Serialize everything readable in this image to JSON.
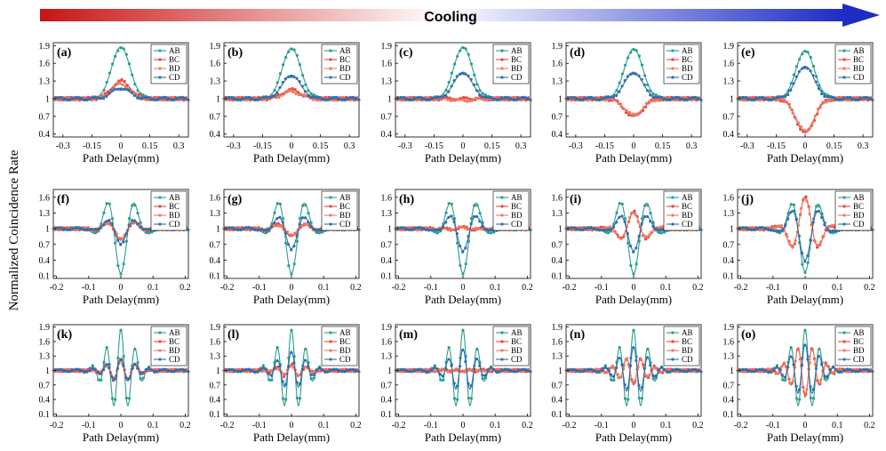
{
  "figure": {
    "banner_label": "Cooling",
    "y_axis_label": "Normalized Coincidence Rate",
    "banner_gradient": [
      "#c81414",
      "#ffffff",
      "#1c2cc4"
    ]
  },
  "series_style": [
    {
      "name": "AB",
      "color": "#2a9d8f"
    },
    {
      "name": "BC",
      "color": "#e8463c"
    },
    {
      "name": "BD",
      "color": "#f07860"
    },
    {
      "name": "CD",
      "color": "#2f6fae"
    }
  ],
  "chart_data": [
    {
      "id": "a",
      "panel_label": "(a)",
      "type": "line",
      "xlabel": "Path Delay(mm)",
      "xticks": [
        "-0.3",
        "-0.15",
        "0",
        "0.15",
        "0.3"
      ],
      "xlim": [
        -0.35,
        0.35
      ],
      "yticks": [
        "0.4",
        "0.7",
        "1",
        "1.3",
        "1.6",
        "1.9"
      ],
      "ylim": [
        0.35,
        1.95
      ],
      "legend": [
        "AB",
        "BC",
        "BD",
        "CD"
      ],
      "series": [
        {
          "name": "AB",
          "form": "gaussian",
          "amplitude": 0.88,
          "width_mm": 0.07
        },
        {
          "name": "BC",
          "form": "gaussian",
          "amplitude": 0.3,
          "width_mm": 0.07
        },
        {
          "name": "BD",
          "form": "gaussian",
          "amplitude": 0.25,
          "width_mm": 0.07
        },
        {
          "name": "CD",
          "form": "gaussian",
          "amplitude": 0.18,
          "width_mm": 0.07
        }
      ]
    },
    {
      "id": "b",
      "panel_label": "(b)",
      "type": "line",
      "xlabel": "Path Delay(mm)",
      "xticks": [
        "-0.3",
        "-0.15",
        "0",
        "0.15",
        "0.3"
      ],
      "xlim": [
        -0.35,
        0.35
      ],
      "yticks": [
        "0.4",
        "0.7",
        "1",
        "1.3",
        "1.6",
        "1.9"
      ],
      "ylim": [
        0.35,
        1.95
      ],
      "legend": [
        "AB",
        "BC",
        "BD",
        "CD"
      ],
      "series": [
        {
          "name": "AB",
          "form": "gaussian",
          "amplitude": 0.86,
          "width_mm": 0.07
        },
        {
          "name": "BC",
          "form": "gaussian",
          "amplitude": 0.15,
          "width_mm": 0.07
        },
        {
          "name": "BD",
          "form": "gaussian",
          "amplitude": 0.12,
          "width_mm": 0.07
        },
        {
          "name": "CD",
          "form": "gaussian",
          "amplitude": 0.4,
          "width_mm": 0.07
        }
      ]
    },
    {
      "id": "c",
      "panel_label": "(c)",
      "type": "line",
      "xlabel": "Path Delay(mm)",
      "xticks": [
        "-0.3",
        "-0.15",
        "0",
        "0.15",
        "0.3"
      ],
      "xlim": [
        -0.35,
        0.35
      ],
      "yticks": [
        "0.4",
        "0.7",
        "1",
        "1.3",
        "1.6",
        "1.9"
      ],
      "ylim": [
        0.35,
        1.95
      ],
      "legend": [
        "AB",
        "BC",
        "BD",
        "CD"
      ],
      "series": [
        {
          "name": "AB",
          "form": "gaussian",
          "amplitude": 0.88,
          "width_mm": 0.07
        },
        {
          "name": "BC",
          "form": "gaussian",
          "amplitude": 0.0,
          "width_mm": 0.07
        },
        {
          "name": "BD",
          "form": "gaussian",
          "amplitude": -0.03,
          "width_mm": 0.07
        },
        {
          "name": "CD",
          "form": "gaussian",
          "amplitude": 0.45,
          "width_mm": 0.07
        }
      ]
    },
    {
      "id": "d",
      "panel_label": "(d)",
      "type": "line",
      "xlabel": "Path Delay(mm)",
      "xticks": [
        "-0.3",
        "-0.15",
        "0",
        "0.15",
        "0.3"
      ],
      "xlim": [
        -0.35,
        0.35
      ],
      "yticks": [
        "0.4",
        "0.7",
        "1",
        "1.3",
        "1.6",
        "1.9"
      ],
      "ylim": [
        0.35,
        1.95
      ],
      "legend": [
        "AB",
        "BC",
        "BD",
        "CD"
      ],
      "series": [
        {
          "name": "AB",
          "form": "gaussian",
          "amplitude": 0.85,
          "width_mm": 0.07
        },
        {
          "name": "BC",
          "form": "gaussian",
          "amplitude": -0.3,
          "width_mm": 0.07
        },
        {
          "name": "BD",
          "form": "gaussian",
          "amplitude": -0.28,
          "width_mm": 0.07
        },
        {
          "name": "CD",
          "form": "gaussian",
          "amplitude": 0.45,
          "width_mm": 0.07
        }
      ]
    },
    {
      "id": "e",
      "panel_label": "(e)",
      "type": "line",
      "xlabel": "Path Delay(mm)",
      "xticks": [
        "-0.3",
        "-0.15",
        "0",
        "0.15",
        "0.3"
      ],
      "xlim": [
        -0.35,
        0.35
      ],
      "yticks": [
        "0.4",
        "0.7",
        "1",
        "1.3",
        "1.6",
        "1.9"
      ],
      "ylim": [
        0.35,
        1.95
      ],
      "legend": [
        "AB",
        "BC",
        "BD",
        "CD"
      ],
      "series": [
        {
          "name": "AB",
          "form": "gaussian",
          "amplitude": 0.82,
          "width_mm": 0.07
        },
        {
          "name": "BC",
          "form": "gaussian",
          "amplitude": -0.58,
          "width_mm": 0.07
        },
        {
          "name": "BD",
          "form": "gaussian",
          "amplitude": -0.55,
          "width_mm": 0.07
        },
        {
          "name": "CD",
          "form": "gaussian",
          "amplitude": 0.55,
          "width_mm": 0.07
        }
      ]
    },
    {
      "id": "f",
      "panel_label": "(f)",
      "type": "line",
      "xlabel": "Path Delay(mm)",
      "xticks": [
        "-0.2",
        "-0.1",
        "0",
        "0.1",
        "0.2"
      ],
      "xlim": [
        -0.21,
        0.21
      ],
      "yticks": [
        "0.1",
        "0.4",
        "0.7",
        "1",
        "1.3",
        "1.6"
      ],
      "ylim": [
        0.05,
        1.75
      ],
      "legend": [
        "AB",
        "BC",
        "BD",
        "CD"
      ],
      "series": [
        {
          "name": "AB",
          "form": "gauss_cos",
          "amplitude": -0.85,
          "period_mm": 0.09,
          "width_mm": 0.06
        },
        {
          "name": "BC",
          "form": "gauss_cos",
          "amplitude": -0.22,
          "period_mm": 0.09,
          "width_mm": 0.06
        },
        {
          "name": "BD",
          "form": "gauss_cos",
          "amplitude": -0.2,
          "period_mm": 0.09,
          "width_mm": 0.06
        },
        {
          "name": "CD",
          "form": "gauss_cos",
          "amplitude": -0.28,
          "period_mm": 0.09,
          "width_mm": 0.06
        }
      ]
    },
    {
      "id": "g",
      "panel_label": "(g)",
      "type": "line",
      "xlabel": "Path Delay(mm)",
      "xticks": [
        "-0.2",
        "-0.1",
        "0",
        "0.1",
        "0.2"
      ],
      "xlim": [
        -0.21,
        0.21
      ],
      "yticks": [
        "0.1",
        "0.4",
        "0.7",
        "1",
        "1.3",
        "1.6"
      ],
      "ylim": [
        0.05,
        1.75
      ],
      "legend": [
        "AB",
        "BC",
        "BD",
        "CD"
      ],
      "series": [
        {
          "name": "AB",
          "form": "gauss_cos",
          "amplitude": -0.85,
          "period_mm": 0.09,
          "width_mm": 0.06
        },
        {
          "name": "BC",
          "form": "gauss_cos",
          "amplitude": -0.15,
          "period_mm": 0.09,
          "width_mm": 0.06
        },
        {
          "name": "BD",
          "form": "gauss_cos",
          "amplitude": -0.13,
          "period_mm": 0.09,
          "width_mm": 0.06
        },
        {
          "name": "CD",
          "form": "gauss_cos",
          "amplitude": -0.38,
          "period_mm": 0.09,
          "width_mm": 0.06
        }
      ]
    },
    {
      "id": "h",
      "panel_label": "(h)",
      "type": "line",
      "xlabel": "Path Delay(mm)",
      "xticks": [
        "-0.2",
        "-0.1",
        "0",
        "0.1",
        "0.2"
      ],
      "xlim": [
        -0.21,
        0.21
      ],
      "yticks": [
        "0.1",
        "0.4",
        "0.7",
        "1",
        "1.3",
        "1.6"
      ],
      "ylim": [
        0.05,
        1.75
      ],
      "legend": [
        "AB",
        "BC",
        "BD",
        "CD"
      ],
      "series": [
        {
          "name": "AB",
          "form": "gauss_cos",
          "amplitude": -0.85,
          "period_mm": 0.09,
          "width_mm": 0.06
        },
        {
          "name": "BC",
          "form": "gauss_cos",
          "amplitude": 0.02,
          "period_mm": 0.09,
          "width_mm": 0.06
        },
        {
          "name": "BD",
          "form": "gauss_cos",
          "amplitude": 0.02,
          "period_mm": 0.09,
          "width_mm": 0.06
        },
        {
          "name": "CD",
          "form": "gauss_cos",
          "amplitude": -0.42,
          "period_mm": 0.09,
          "width_mm": 0.06
        }
      ]
    },
    {
      "id": "i",
      "panel_label": "(i)",
      "type": "line",
      "xlabel": "Path Delay(mm)",
      "xticks": [
        "-0.2",
        "-0.1",
        "0",
        "0.1",
        "0.2"
      ],
      "xlim": [
        -0.21,
        0.21
      ],
      "yticks": [
        "0.1",
        "0.4",
        "0.7",
        "1",
        "1.3",
        "1.6"
      ],
      "ylim": [
        0.05,
        1.75
      ],
      "legend": [
        "AB",
        "BC",
        "BD",
        "CD"
      ],
      "series": [
        {
          "name": "AB",
          "form": "gauss_cos",
          "amplitude": -0.85,
          "period_mm": 0.09,
          "width_mm": 0.06
        },
        {
          "name": "BC",
          "form": "gauss_cos",
          "amplitude": 0.32,
          "period_mm": 0.09,
          "width_mm": 0.06
        },
        {
          "name": "BD",
          "form": "gauss_cos",
          "amplitude": 0.3,
          "period_mm": 0.09,
          "width_mm": 0.06
        },
        {
          "name": "CD",
          "form": "gauss_cos",
          "amplitude": -0.42,
          "period_mm": 0.09,
          "width_mm": 0.06
        }
      ]
    },
    {
      "id": "j",
      "panel_label": "(j)",
      "type": "line",
      "xlabel": "Path Delay(mm)",
      "xticks": [
        "-0.2",
        "-0.1",
        "0",
        "0.1",
        "0.2"
      ],
      "xlim": [
        -0.21,
        0.21
      ],
      "yticks": [
        "0.1",
        "0.4",
        "0.7",
        "1",
        "1.3",
        "1.6"
      ],
      "ylim": [
        0.05,
        1.75
      ],
      "legend": [
        "AB",
        "BC",
        "BD",
        "CD"
      ],
      "series": [
        {
          "name": "AB",
          "form": "gauss_cos",
          "amplitude": -0.82,
          "period_mm": 0.09,
          "width_mm": 0.06
        },
        {
          "name": "BC",
          "form": "gauss_cos",
          "amplitude": 0.6,
          "period_mm": 0.09,
          "width_mm": 0.06
        },
        {
          "name": "BD",
          "form": "gauss_cos",
          "amplitude": 0.58,
          "period_mm": 0.09,
          "width_mm": 0.06
        },
        {
          "name": "CD",
          "form": "gauss_cos",
          "amplitude": -0.6,
          "period_mm": 0.09,
          "width_mm": 0.06
        }
      ]
    },
    {
      "id": "k",
      "panel_label": "(k)",
      "type": "line",
      "xlabel": "Path Delay(mm)",
      "xticks": [
        "-0.2",
        "-0.1",
        "0",
        "0.1",
        "0.2"
      ],
      "xlim": [
        -0.21,
        0.21
      ],
      "yticks": [
        "0.1",
        "0.4",
        "0.7",
        "1",
        "1.3",
        "1.6",
        "1.9"
      ],
      "ylim": [
        0.05,
        1.95
      ],
      "legend": [
        "AB",
        "BC",
        "BD",
        "CD"
      ],
      "series": [
        {
          "name": "AB",
          "form": "gauss_cos",
          "amplitude": 0.85,
          "period_mm": 0.045,
          "width_mm": 0.06
        },
        {
          "name": "BC",
          "form": "gauss_cos",
          "amplitude": 0.22,
          "period_mm": 0.045,
          "width_mm": 0.06
        },
        {
          "name": "BD",
          "form": "gauss_cos",
          "amplitude": 0.2,
          "period_mm": 0.045,
          "width_mm": 0.06
        },
        {
          "name": "CD",
          "form": "gauss_cos",
          "amplitude": 0.25,
          "period_mm": 0.045,
          "width_mm": 0.06
        }
      ]
    },
    {
      "id": "l",
      "panel_label": "(l)",
      "type": "line",
      "xlabel": "Path Delay(mm)",
      "xticks": [
        "-0.2",
        "-0.1",
        "0",
        "0.1",
        "0.2"
      ],
      "xlim": [
        -0.21,
        0.21
      ],
      "yticks": [
        "0.1",
        "0.4",
        "0.7",
        "1",
        "1.3",
        "1.6",
        "1.9"
      ],
      "ylim": [
        0.05,
        1.95
      ],
      "legend": [
        "AB",
        "BC",
        "BD",
        "CD"
      ],
      "series": [
        {
          "name": "AB",
          "form": "gauss_cos",
          "amplitude": 0.85,
          "period_mm": 0.045,
          "width_mm": 0.06
        },
        {
          "name": "BC",
          "form": "gauss_cos",
          "amplitude": 0.12,
          "period_mm": 0.045,
          "width_mm": 0.06
        },
        {
          "name": "BD",
          "form": "gauss_cos",
          "amplitude": 0.1,
          "period_mm": 0.045,
          "width_mm": 0.06
        },
        {
          "name": "CD",
          "form": "gauss_cos",
          "amplitude": 0.4,
          "period_mm": 0.045,
          "width_mm": 0.06
        }
      ]
    },
    {
      "id": "m",
      "panel_label": "(m)",
      "type": "line",
      "xlabel": "Path Delay(mm)",
      "xticks": [
        "-0.2",
        "-0.1",
        "0",
        "0.1",
        "0.2"
      ],
      "xlim": [
        -0.21,
        0.21
      ],
      "yticks": [
        "0.1",
        "0.4",
        "0.7",
        "1",
        "1.3",
        "1.6",
        "1.9"
      ],
      "ylim": [
        0.05,
        1.95
      ],
      "legend": [
        "AB",
        "BC",
        "BD",
        "CD"
      ],
      "series": [
        {
          "name": "AB",
          "form": "gauss_cos",
          "amplitude": 0.85,
          "period_mm": 0.045,
          "width_mm": 0.06
        },
        {
          "name": "BC",
          "form": "gauss_cos",
          "amplitude": -0.04,
          "period_mm": 0.045,
          "width_mm": 0.06
        },
        {
          "name": "BD",
          "form": "gauss_cos",
          "amplitude": -0.03,
          "period_mm": 0.045,
          "width_mm": 0.06
        },
        {
          "name": "CD",
          "form": "gauss_cos",
          "amplitude": 0.45,
          "period_mm": 0.045,
          "width_mm": 0.06
        }
      ]
    },
    {
      "id": "n",
      "panel_label": "(n)",
      "type": "line",
      "xlabel": "Path Delay(mm)",
      "xticks": [
        "-0.2",
        "-0.1",
        "0",
        "0.1",
        "0.2"
      ],
      "xlim": [
        -0.21,
        0.21
      ],
      "yticks": [
        "0.1",
        "0.4",
        "0.7",
        "1",
        "1.3",
        "1.6",
        "1.9"
      ],
      "ylim": [
        0.05,
        1.95
      ],
      "legend": [
        "AB",
        "BC",
        "BD",
        "CD"
      ],
      "series": [
        {
          "name": "AB",
          "form": "gauss_cos",
          "amplitude": 0.85,
          "period_mm": 0.045,
          "width_mm": 0.06
        },
        {
          "name": "BC",
          "form": "gauss_cos",
          "amplitude": -0.3,
          "period_mm": 0.045,
          "width_mm": 0.06
        },
        {
          "name": "BD",
          "form": "gauss_cos",
          "amplitude": -0.28,
          "period_mm": 0.045,
          "width_mm": 0.06
        },
        {
          "name": "CD",
          "form": "gauss_cos",
          "amplitude": 0.5,
          "period_mm": 0.045,
          "width_mm": 0.06
        }
      ]
    },
    {
      "id": "o",
      "panel_label": "(o)",
      "type": "line",
      "xlabel": "Path Delay(mm)",
      "xticks": [
        "-0.2",
        "-0.1",
        "0",
        "0.1",
        "0.2"
      ],
      "xlim": [
        -0.21,
        0.21
      ],
      "yticks": [
        "0.1",
        "0.4",
        "0.7",
        "1",
        "1.3",
        "1.6",
        "1.9"
      ],
      "ylim": [
        0.05,
        1.95
      ],
      "legend": [
        "AB",
        "BC",
        "BD",
        "CD"
      ],
      "series": [
        {
          "name": "AB",
          "form": "gauss_cos",
          "amplitude": 0.85,
          "period_mm": 0.045,
          "width_mm": 0.06
        },
        {
          "name": "BC",
          "form": "gauss_cos",
          "amplitude": -0.55,
          "period_mm": 0.045,
          "width_mm": 0.06
        },
        {
          "name": "BD",
          "form": "gauss_cos",
          "amplitude": -0.52,
          "period_mm": 0.045,
          "width_mm": 0.06
        },
        {
          "name": "CD",
          "form": "gauss_cos",
          "amplitude": 0.55,
          "period_mm": 0.045,
          "width_mm": 0.06
        }
      ]
    }
  ]
}
